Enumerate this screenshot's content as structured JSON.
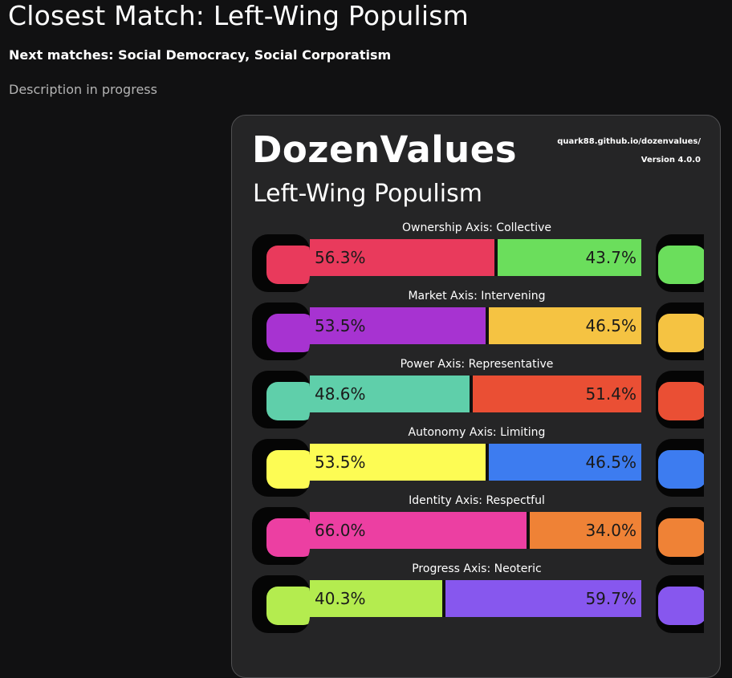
{
  "header": {
    "title": "Closest Match: Left-Wing Populism",
    "next_matches": "Next matches: Social Democracy, Social Corporatism",
    "description": "Description in progress"
  },
  "card": {
    "brand": "DozenValues",
    "ideology": "Left-Wing Populism",
    "url": "quark88.github.io/dozenvalues/",
    "version": "Version 4.0.0"
  },
  "axes": [
    {
      "label": "Ownership Axis: Collective",
      "left_pct": "56.3%",
      "right_pct": "43.7%",
      "left_value": 56.3,
      "right_value": 43.7,
      "left_color": "#e93a5c",
      "right_color": "#6bde5c",
      "icon_left": "ownership-collective-icon",
      "icon_right": "ownership-private-icon"
    },
    {
      "label": "Market Axis: Intervening",
      "left_pct": "53.5%",
      "right_pct": "46.5%",
      "left_value": 53.5,
      "right_value": 46.5,
      "left_color": "#a733d1",
      "right_color": "#f5c342",
      "icon_left": "market-intervening-icon",
      "icon_right": "market-free-icon"
    },
    {
      "label": "Power Axis: Representative",
      "left_pct": "48.6%",
      "right_pct": "51.4%",
      "left_value": 48.6,
      "right_value": 51.4,
      "left_color": "#5fcfaa",
      "right_color": "#ea4f34",
      "icon_left": "power-representative-icon",
      "icon_right": "power-authority-icon"
    },
    {
      "label": "Autonomy Axis: Limiting",
      "left_pct": "53.5%",
      "right_pct": "46.5%",
      "left_value": 53.5,
      "right_value": 46.5,
      "left_color": "#fdfc54",
      "right_color": "#3d7cf0",
      "icon_left": "autonomy-limiting-icon",
      "icon_right": "autonomy-free-icon"
    },
    {
      "label": "Identity Axis: Respectful",
      "left_pct": "66.0%",
      "right_pct": "34.0%",
      "left_value": 66.0,
      "right_value": 34.0,
      "left_color": "#ec3fa2",
      "right_color": "#ef8236",
      "icon_left": "identity-respectful-icon",
      "icon_right": "identity-national-icon"
    },
    {
      "label": "Progress Axis: Neoteric",
      "left_pct": "40.3%",
      "right_pct": "59.7%",
      "left_value": 40.3,
      "right_value": 59.7,
      "left_color": "#b4ec4f",
      "right_color": "#8757ee",
      "icon_left": "progress-neoteric-icon",
      "icon_right": "progress-traditional-icon"
    }
  ]
}
